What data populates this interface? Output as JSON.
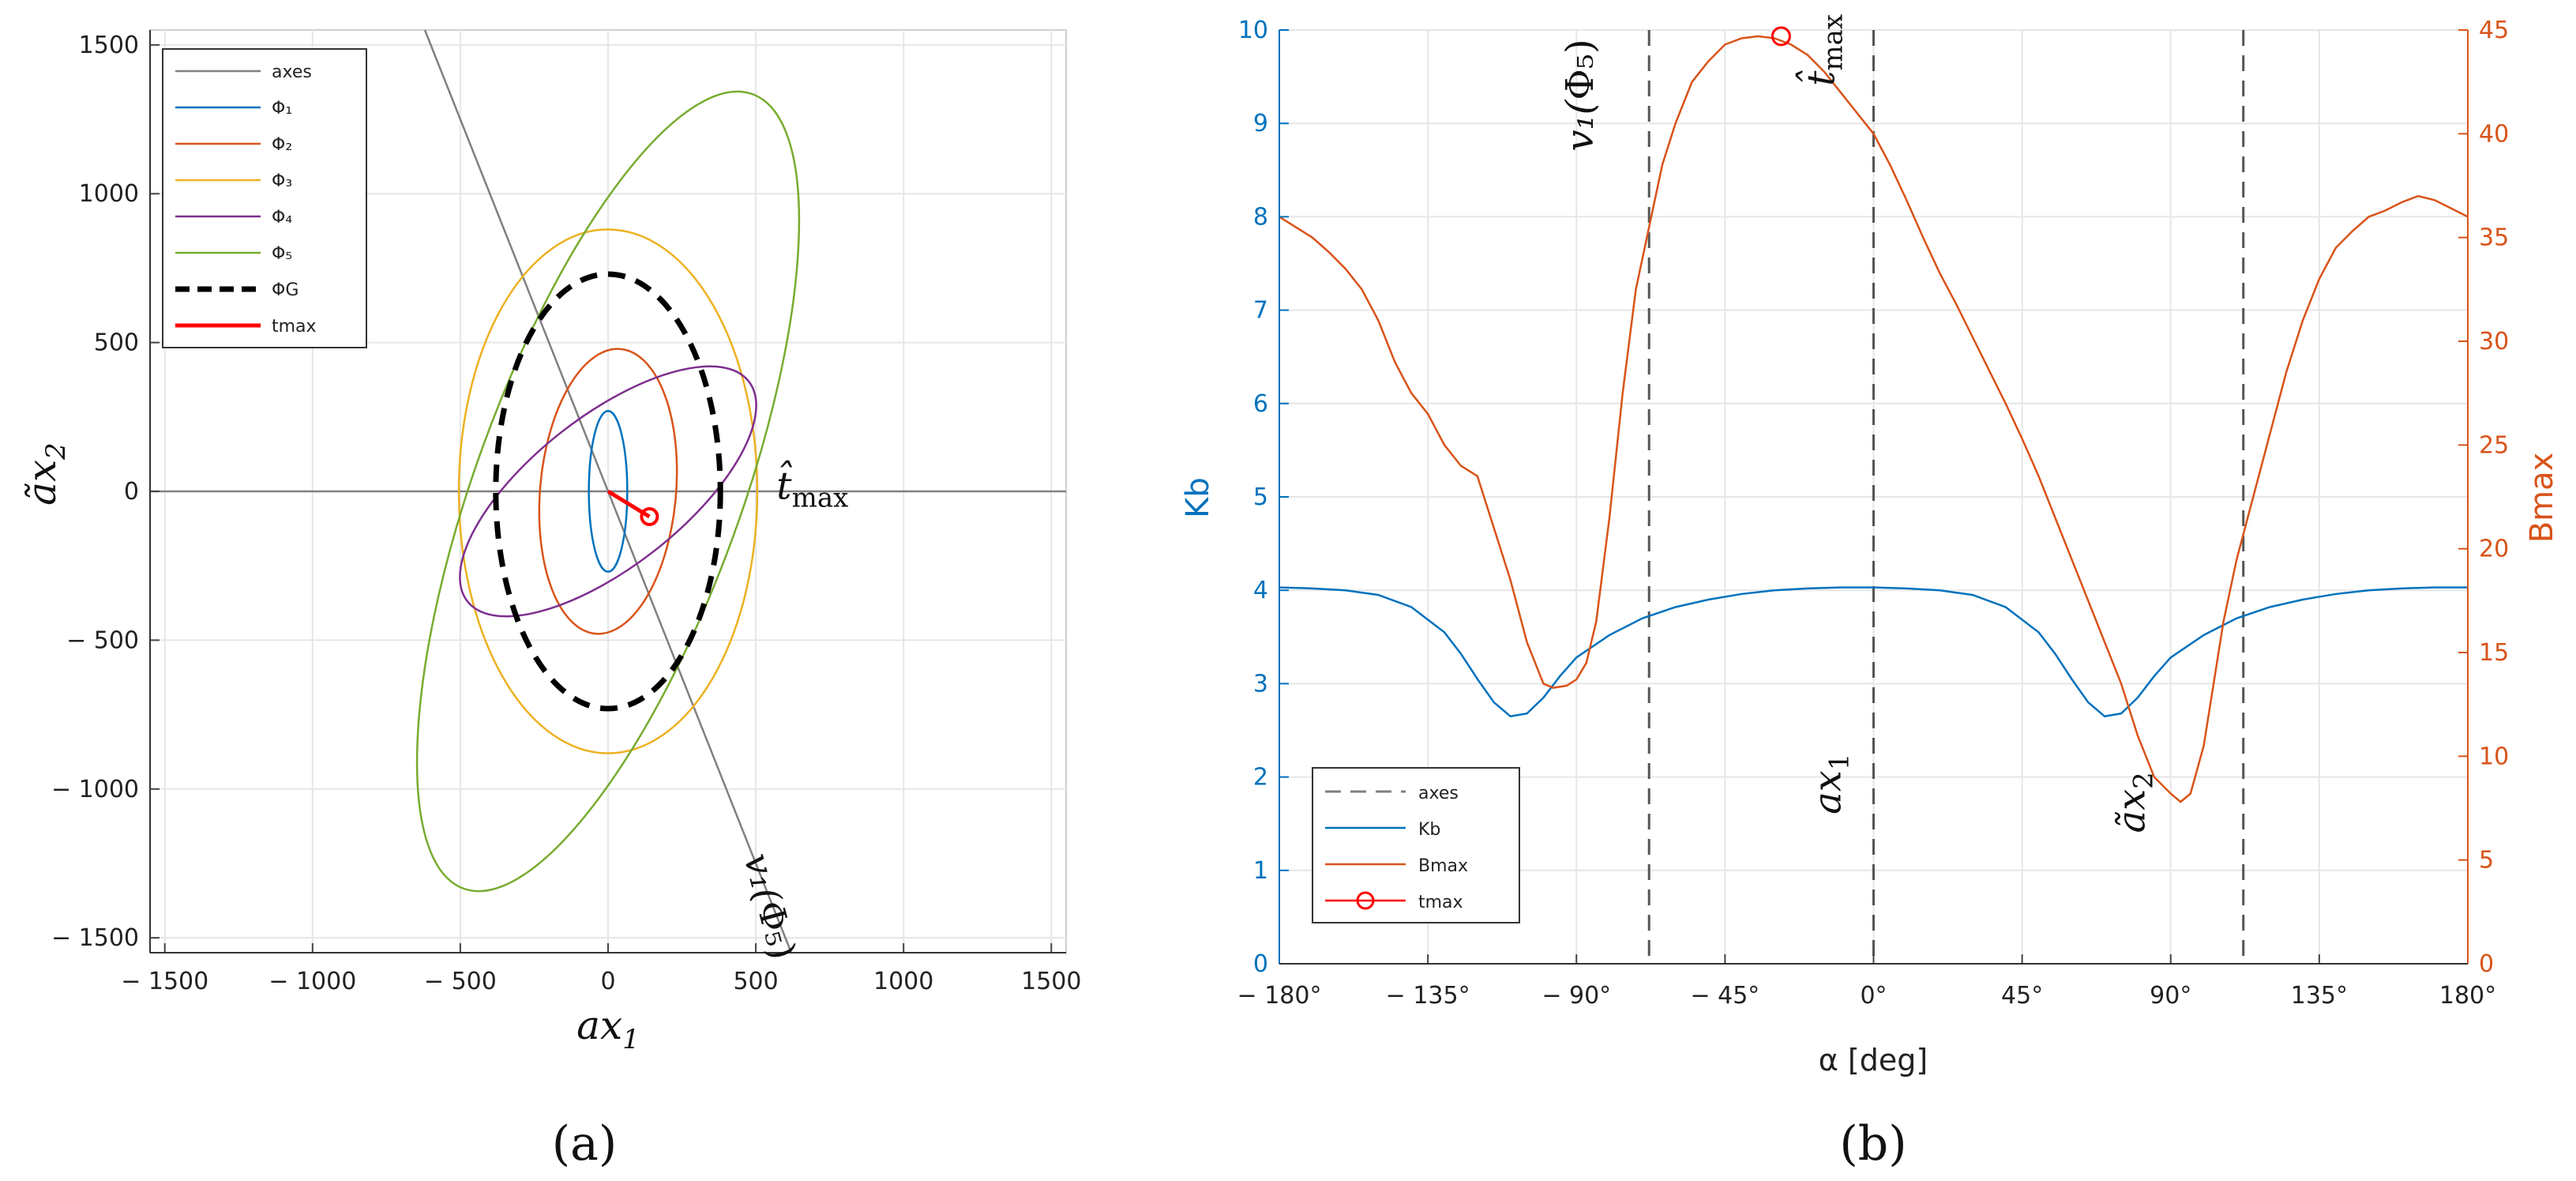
{
  "colors": {
    "blue": "#0072BD",
    "orange": "#D95319",
    "yellow": "#EDB120",
    "purple": "#7E2F8E",
    "green": "#77AC30",
    "black": "#000000",
    "red": "#FF0000",
    "grey": "#808080",
    "kb_axis": "#0072BD",
    "bmax_axis": "#D95319"
  },
  "chart_data": [
    {
      "panel_label": "(a)",
      "type": "line",
      "xlabel": "ax1",
      "ylabel": "ãx2",
      "xlim": [
        -1550,
        1550
      ],
      "ylim": [
        -1550,
        1550
      ],
      "xticks": [
        -1500,
        -1000,
        -500,
        0,
        500,
        1000,
        1500
      ],
      "yticks": [
        -1500,
        -1000,
        -500,
        0,
        500,
        1000,
        1500
      ],
      "xtick_labels": [
        "− 1500",
        "− 1000",
        "− 500",
        "0",
        "500",
        "1000",
        "1500"
      ],
      "ytick_labels": [
        "− 1500",
        "− 1000",
        "− 500",
        "0",
        "500",
        "1000",
        "1500"
      ],
      "grid": true,
      "legend_position": "top-left",
      "legend": [
        "axes",
        "Φ₁",
        "Φ₂",
        "Φ₃",
        "Φ₄",
        "Φ₅",
        "ΦG",
        "tmax"
      ],
      "series": [
        {
          "name": "axes",
          "kind": "line",
          "points": [
            [
              -620,
              1550
            ],
            [
              620,
              -1550
            ]
          ],
          "color": "grey"
        },
        {
          "name": "axes-horizontal",
          "kind": "line",
          "points": [
            [
              -1550,
              0
            ],
            [
              1550,
              0
            ]
          ],
          "color": "grey"
        },
        {
          "name": "Φ₁",
          "kind": "ellipse",
          "a": 270,
          "b": 65,
          "angle": 0,
          "color": "blue"
        },
        {
          "name": "Φ₂",
          "kind": "ellipse",
          "a": 480,
          "b": 230,
          "angle": -5,
          "color": "orange"
        },
        {
          "name": "Φ₃",
          "kind": "ellipse",
          "a": 880,
          "b": 505,
          "angle": 0,
          "color": "yellow"
        },
        {
          "name": "Φ₄",
          "kind": "ellipse",
          "a": 600,
          "b": 255,
          "angle": -52,
          "color": "purple"
        },
        {
          "name": "Φ₅",
          "kind": "ellipse",
          "a": 1420,
          "b": 450,
          "angle": -20,
          "color": "green"
        },
        {
          "name": "ΦG",
          "kind": "ellipse",
          "a": 730,
          "b": 380,
          "angle": 0,
          "color": "black",
          "dashed": true
        },
        {
          "name": "tmax",
          "kind": "segment",
          "points": [
            [
              0,
              0
            ],
            [
              140,
              -85
            ]
          ],
          "color": "red",
          "marker": "circle"
        }
      ],
      "annotations": [
        {
          "text_main": "t̂",
          "text_sub": "max",
          "at": [
            570,
            -25
          ]
        },
        {
          "text_main": "v₁(",
          "text_main2": "Φ₅",
          "text_close": ")",
          "at": [
            460,
            -1230
          ],
          "rotation": -75
        }
      ]
    },
    {
      "panel_label": "(b)",
      "type": "line",
      "xlabel": "α [deg]",
      "ylabel": "Kb",
      "ylabel_right": "Bmax",
      "xlim": [
        -180,
        180
      ],
      "ylim": [
        0,
        10
      ],
      "ylim_right": [
        0,
        45
      ],
      "xticks": [
        -180,
        -135,
        -90,
        -45,
        0,
        45,
        90,
        135,
        180
      ],
      "xtick_labels": [
        "− 180°",
        "− 135°",
        "− 90°",
        "− 45°",
        "0°",
        "45°",
        "90°",
        "135°",
        "180°"
      ],
      "yticks": [
        0,
        1,
        2,
        3,
        4,
        5,
        6,
        7,
        8,
        9,
        10
      ],
      "ytick_labels": [
        "0",
        "1",
        "2",
        "3",
        "4",
        "5",
        "6",
        "7",
        "8",
        "9",
        "10"
      ],
      "yticks_right": [
        0,
        5,
        10,
        15,
        20,
        25,
        30,
        35,
        40,
        45
      ],
      "ytick_labels_right": [
        "0",
        "5",
        "10",
        "15",
        "20",
        "25",
        "30",
        "35",
        "40",
        "45"
      ],
      "grid": true,
      "legend_position": "bottom-left",
      "legend": [
        "axes",
        "Kb",
        "Bmax",
        "tmax"
      ],
      "axes_vlines": [
        -68,
        0,
        112
      ],
      "kb": {
        "x": [
          -180,
          -170,
          -160,
          -150,
          -140,
          -130,
          -125,
          -120,
          -115,
          -110,
          -105,
          -100,
          -95,
          -90,
          -80,
          -70,
          -60,
          -50,
          -40,
          -30,
          -20,
          -10,
          0,
          10,
          20,
          30,
          40,
          50,
          55,
          60,
          65,
          70,
          75,
          80,
          85,
          90,
          100,
          110,
          120,
          130,
          140,
          150,
          160,
          170,
          180
        ],
        "values": [
          4.03,
          4.02,
          4.0,
          3.95,
          3.82,
          3.55,
          3.32,
          3.05,
          2.8,
          2.65,
          2.68,
          2.85,
          3.08,
          3.28,
          3.52,
          3.7,
          3.82,
          3.9,
          3.96,
          4.0,
          4.02,
          4.03,
          4.03,
          4.02,
          4.0,
          3.95,
          3.82,
          3.55,
          3.32,
          3.05,
          2.8,
          2.65,
          2.68,
          2.85,
          3.08,
          3.28,
          3.52,
          3.7,
          3.82,
          3.9,
          3.96,
          4.0,
          4.02,
          4.03,
          4.03
        ]
      },
      "bmax": {
        "x": [
          -180,
          -175,
          -170,
          -165,
          -160,
          -155,
          -150,
          -145,
          -140,
          -135,
          -130,
          -125,
          -120,
          -115,
          -110,
          -105,
          -100,
          -97,
          -93,
          -90,
          -87,
          -84,
          -80,
          -76,
          -72,
          -68,
          -64,
          -60,
          -55,
          -50,
          -45,
          -40,
          -35,
          -30,
          -25,
          -20,
          -15,
          -10,
          -5,
          0,
          5,
          10,
          15,
          20,
          25,
          30,
          35,
          40,
          45,
          50,
          55,
          60,
          65,
          70,
          75,
          80,
          85,
          90,
          93,
          96,
          100,
          103,
          106,
          110,
          115,
          120,
          125,
          130,
          135,
          140,
          145,
          150,
          155,
          160,
          165,
          170,
          175,
          180
        ],
        "values": [
          36,
          35.5,
          35,
          34.3,
          33.5,
          32.5,
          31,
          29,
          27.5,
          26.5,
          25,
          24,
          23.5,
          21,
          18.5,
          15.5,
          13.5,
          13.3,
          13.4,
          13.7,
          14.5,
          16.5,
          21.5,
          27.5,
          32.5,
          35.5,
          38.5,
          40.5,
          42.5,
          43.5,
          44.3,
          44.6,
          44.7,
          44.6,
          44.3,
          43.8,
          43,
          42,
          41,
          40,
          38.5,
          36.8,
          35,
          33.3,
          31.8,
          30.2,
          28.6,
          27,
          25.3,
          23.5,
          21.5,
          19.5,
          17.5,
          15.5,
          13.5,
          11,
          9,
          8.2,
          7.8,
          8.2,
          10.5,
          13.5,
          16.5,
          19.5,
          22.5,
          25.5,
          28.5,
          31,
          33,
          34.5,
          35.3,
          36,
          36.3,
          36.7,
          37,
          36.8,
          36.4,
          36
        ]
      },
      "tmax_point": {
        "x": -28,
        "value": 44.7
      },
      "annotations": [
        {
          "text_main": "v₁(",
          "text_main2": "Φ₅",
          "text_close": ")",
          "at": [
            -85,
            8.7
          ],
          "rotation": -90
        },
        {
          "text_main": "t̂",
          "text_sub": "max",
          "at": [
            -12,
            9.4
          ],
          "rotation": -90
        },
        {
          "text_main": "ax",
          "text_sub": "1",
          "at": [
            -10,
            1.6
          ],
          "rotation": -90
        },
        {
          "text_main": "ãx",
          "text_sub": "2",
          "at": [
            82,
            1.4
          ],
          "rotation": -90
        }
      ]
    }
  ]
}
